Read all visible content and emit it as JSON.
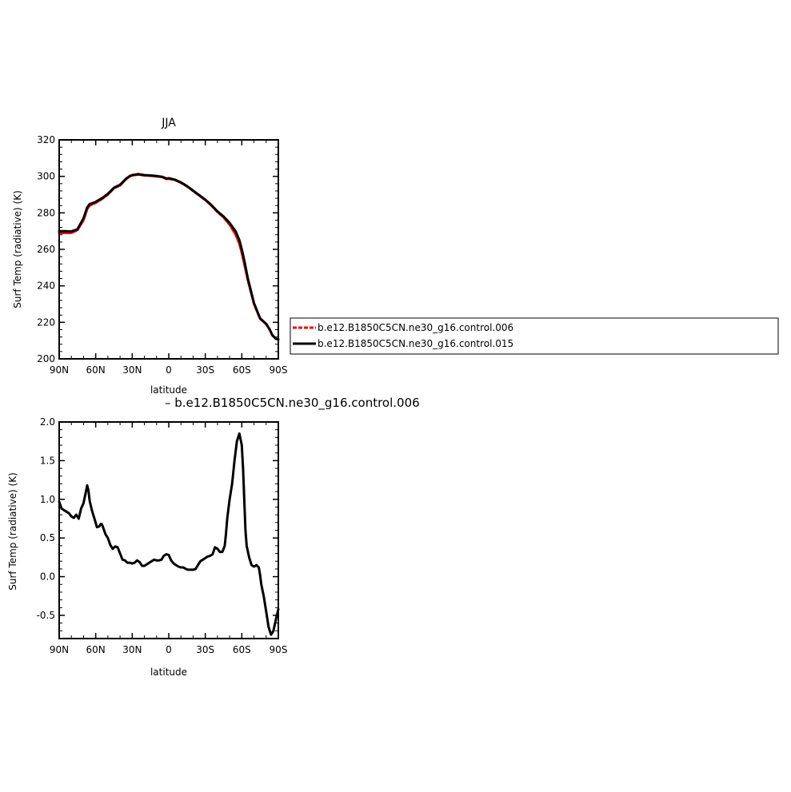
{
  "chart_data": [
    {
      "type": "line",
      "title": "JJA",
      "xlabel": "latitude",
      "ylabel": "Surf Temp (radiative) (K)",
      "xlim": [
        90,
        -90
      ],
      "ylim": [
        200,
        320
      ],
      "xticks": [
        90,
        60,
        30,
        0,
        -30,
        -60,
        -90
      ],
      "xtick_labels": [
        "90N",
        "60N",
        "30N",
        "0",
        "30S",
        "60S",
        "90S"
      ],
      "yticks": [
        200,
        220,
        240,
        260,
        280,
        300,
        320
      ],
      "ytick_labels": [
        "200",
        "220",
        "240",
        "260",
        "280",
        "300",
        "320"
      ],
      "legend_position": "right",
      "series": [
        {
          "name": "b.e12.B1850C5CN.ne30_g16.control.006",
          "color": "#ff0000",
          "dash": "dashed",
          "x": [
            90,
            85,
            80,
            75,
            70,
            67,
            65,
            60,
            55,
            50,
            45,
            40,
            35,
            32,
            30,
            25,
            20,
            15,
            10,
            5,
            2,
            0,
            -5,
            -10,
            -15,
            -20,
            -25,
            -30,
            -35,
            -40,
            -45,
            -50,
            -55,
            -58,
            -60,
            -62,
            -65,
            -70,
            -75,
            -80,
            -83,
            -85,
            -88,
            -90
          ],
          "y": [
            269,
            269,
            269,
            270.5,
            276,
            282,
            284,
            285.5,
            287.5,
            290,
            293.5,
            295,
            298.5,
            300,
            300.5,
            301,
            300.5,
            300.3,
            300,
            299.5,
            298.5,
            298.7,
            298,
            296.5,
            294.5,
            292,
            289.5,
            287,
            284,
            280.5,
            277.5,
            273.5,
            268,
            263,
            258,
            252,
            243,
            230,
            222,
            219,
            216,
            213,
            211,
            210.5
          ]
        },
        {
          "name": "b.e12.B1850C5CN.ne30_g16.control.015",
          "color": "#000000",
          "dash": "solid",
          "x": [
            90,
            85,
            80,
            75,
            70,
            67,
            65,
            60,
            55,
            50,
            45,
            40,
            35,
            32,
            30,
            25,
            20,
            15,
            10,
            5,
            2,
            0,
            -5,
            -10,
            -15,
            -20,
            -25,
            -30,
            -35,
            -40,
            -45,
            -50,
            -55,
            -58,
            -60,
            -62,
            -65,
            -70,
            -75,
            -80,
            -83,
            -85,
            -88,
            -90
          ],
          "y": [
            270,
            270,
            269.8,
            271,
            277,
            283,
            284.8,
            286,
            288,
            290.5,
            293.8,
            295.4,
            298.7,
            300.2,
            300.7,
            301.2,
            300.7,
            300.5,
            300.2,
            299.7,
            298.8,
            299,
            298.2,
            296.7,
            294.7,
            292.2,
            289.7,
            287.2,
            284.3,
            280.8,
            278,
            274.5,
            269.8,
            265,
            260,
            254,
            244,
            230.5,
            222.2,
            219.2,
            216,
            213,
            211,
            210.7
          ]
        }
      ]
    },
    {
      "type": "line",
      "title": "– b.e12.B1850C5CN.ne30_g16.control.006",
      "xlabel": "latitude",
      "ylabel": "Surf Temp (radiative) (K)",
      "xlim": [
        90,
        -90
      ],
      "ylim": [
        -0.8,
        2.0
      ],
      "xticks": [
        90,
        60,
        30,
        0,
        -30,
        -60,
        -90
      ],
      "xtick_labels": [
        "90N",
        "60N",
        "30N",
        "0",
        "30S",
        "60S",
        "90S"
      ],
      "yticks": [
        -0.5,
        0.0,
        0.5,
        1.0,
        1.5,
        2.0
      ],
      "ytick_labels": [
        "-0.5",
        "0.0",
        "0.5",
        "1.0",
        "1.5",
        "2.0"
      ],
      "series": [
        {
          "color": "#000000",
          "dash": "solid",
          "x": [
            90,
            88,
            85,
            82,
            80,
            78,
            76,
            74,
            72,
            70,
            68,
            67,
            66,
            65,
            63,
            61,
            59,
            57,
            56,
            55,
            54,
            52,
            50,
            48,
            46,
            44,
            42,
            40,
            38,
            36,
            34,
            32,
            30,
            28,
            26,
            24,
            22,
            20,
            18,
            16,
            14,
            12,
            10,
            8,
            6,
            4,
            2,
            0,
            -2,
            -4,
            -6,
            -8,
            -10,
            -12,
            -14,
            -16,
            -18,
            -20,
            -22,
            -24,
            -26,
            -28,
            -30,
            -32,
            -34,
            -36,
            -38,
            -40,
            -42,
            -44,
            -46,
            -47,
            -48,
            -50,
            -52,
            -54,
            -56,
            -58,
            -60,
            -61,
            -62,
            -63,
            -64,
            -66,
            -68,
            -70,
            -72,
            -74,
            -75,
            -76,
            -78,
            -80,
            -82,
            -84,
            -86,
            -88,
            -90
          ],
          "y": [
            0.97,
            0.88,
            0.85,
            0.82,
            0.78,
            0.76,
            0.8,
            0.75,
            0.88,
            0.95,
            1.1,
            1.18,
            1.12,
            0.98,
            0.85,
            0.75,
            0.64,
            0.65,
            0.68,
            0.68,
            0.64,
            0.55,
            0.5,
            0.41,
            0.36,
            0.39,
            0.38,
            0.3,
            0.22,
            0.21,
            0.18,
            0.18,
            0.17,
            0.18,
            0.21,
            0.19,
            0.14,
            0.14,
            0.16,
            0.18,
            0.2,
            0.22,
            0.21,
            0.21,
            0.22,
            0.27,
            0.29,
            0.28,
            0.21,
            0.17,
            0.15,
            0.13,
            0.12,
            0.12,
            0.1,
            0.09,
            0.09,
            0.09,
            0.1,
            0.15,
            0.2,
            0.22,
            0.24,
            0.26,
            0.27,
            0.29,
            0.38,
            0.36,
            0.32,
            0.32,
            0.4,
            0.55,
            0.75,
            1.0,
            1.2,
            1.5,
            1.75,
            1.85,
            1.7,
            1.4,
            1.0,
            0.6,
            0.4,
            0.25,
            0.15,
            0.13,
            0.15,
            0.12,
            0.02,
            -0.1,
            -0.25,
            -0.45,
            -0.65,
            -0.75,
            -0.7,
            -0.55,
            -0.42
          ]
        }
      ]
    }
  ]
}
